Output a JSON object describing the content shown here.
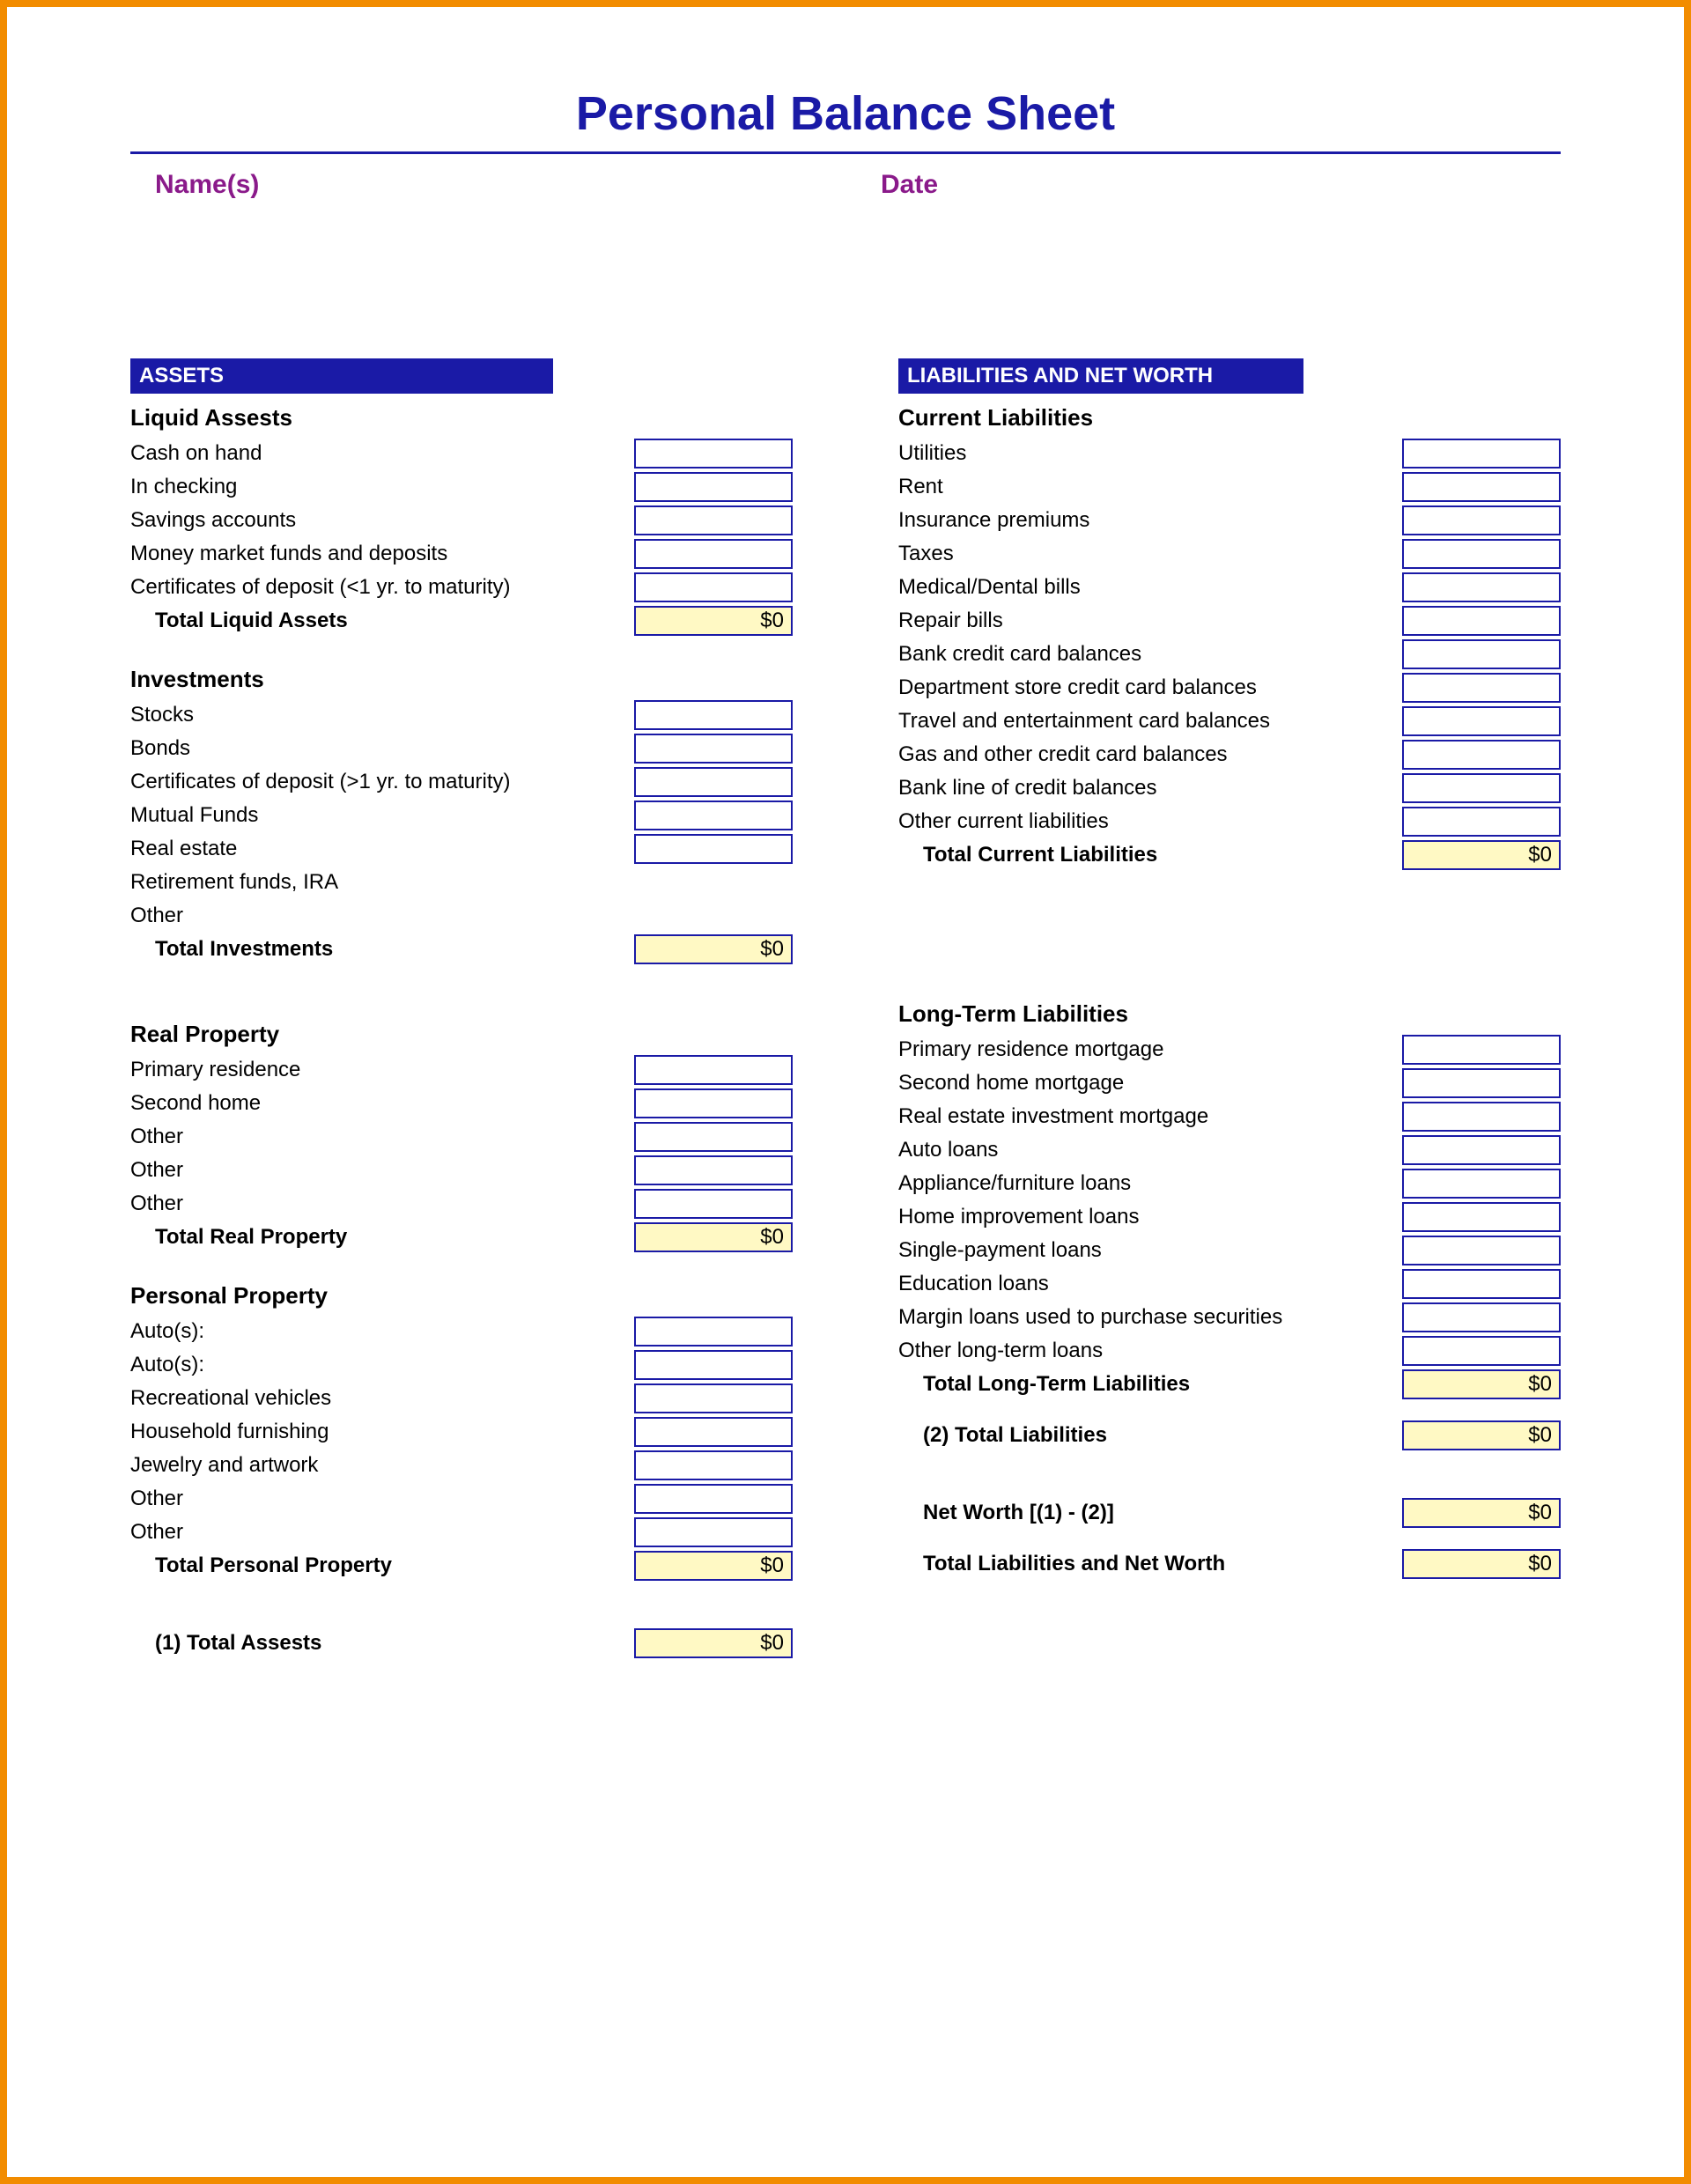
{
  "title": "Personal Balance Sheet",
  "header": {
    "names_label": "Name(s)",
    "date_label": "Date"
  },
  "colors": {
    "frame_border": "#f28c00",
    "primary": "#1a1aa6",
    "header_text": "#8a1a8a",
    "total_bg": "#fff9c4",
    "background": "#ffffff"
  },
  "typography": {
    "title_fontsize": 54,
    "section_header_fontsize": 30,
    "subhead_fontsize": 26,
    "row_fontsize": 24
  },
  "assets": {
    "banner": "ASSETS",
    "liquid": {
      "heading": "Liquid Assests",
      "items": [
        "Cash on hand",
        "In checking",
        "Savings accounts",
        "Money market funds and deposits",
        "Certificates of deposit (<1 yr. to maturity)"
      ],
      "total_label": "Total Liquid Assets",
      "total_value": "$0"
    },
    "investments": {
      "heading": "Investments",
      "items": [
        "Stocks",
        "Bonds",
        "Certificates of deposit (>1 yr. to maturity)",
        "Mutual Funds",
        "Real estate",
        "Retirement funds, IRA",
        "Other"
      ],
      "cells_for": 5,
      "total_label": "Total Investments",
      "total_value": "$0"
    },
    "real_property": {
      "heading": "Real Property",
      "items": [
        "Primary residence",
        "Second home",
        "Other",
        "Other",
        "Other"
      ],
      "total_label": "Total Real Property",
      "total_value": "$0"
    },
    "personal_property": {
      "heading": "Personal Property",
      "items": [
        "Auto(s):",
        "Auto(s):",
        "Recreational vehicles",
        "Household furnishing",
        "Jewelry and artwork",
        "Other",
        "Other"
      ],
      "total_label": "Total Personal Property",
      "total_value": "$0"
    },
    "grand_total_label": "(1) Total Assests",
    "grand_total_value": "$0"
  },
  "liabilities": {
    "banner": "LIABILITIES AND NET WORTH",
    "current": {
      "heading": "Current Liabilities",
      "items": [
        "Utilities",
        "Rent",
        "Insurance premiums",
        "Taxes",
        "Medical/Dental bills",
        "Repair bills",
        "Bank credit card balances",
        "Department store credit card balances",
        "Travel and entertainment card balances",
        "Gas and other credit card balances",
        "Bank line of credit balances",
        "Other current liabilities"
      ],
      "total_label": "Total Current Liabilities",
      "total_value": "$0"
    },
    "long_term": {
      "heading": "Long-Term Liabilities",
      "items": [
        "Primary residence mortgage",
        "Second home mortgage",
        "Real estate investment mortgage",
        "Auto loans",
        "Appliance/furniture loans",
        "Home improvement loans",
        "Single-payment loans",
        "Education loans",
        "Margin loans used to purchase securities",
        "Other long-term loans"
      ],
      "total_label": "Total Long-Term Liabilities",
      "total_value": "$0"
    },
    "total_liab_label": "(2) Total Liabilities",
    "total_liab_value": "$0",
    "net_worth_label": "Net Worth [(1) - (2)]",
    "net_worth_value": "$0",
    "grand_total_label": "Total Liabilities and Net Worth",
    "grand_total_value": "$0"
  }
}
